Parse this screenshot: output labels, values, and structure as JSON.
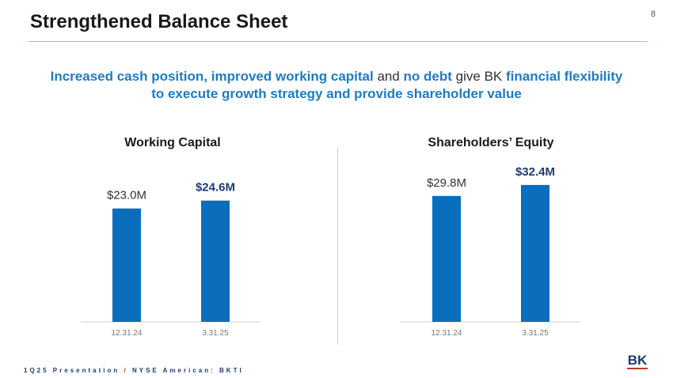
{
  "header": {
    "title": "Strengthened Balance Sheet",
    "page_number": "8"
  },
  "subtitle": {
    "part1": "Increased cash position, improved working capital",
    "part2": " and ",
    "part3": "no debt",
    "part4": " give BK ",
    "part5": "financial flexibility",
    "line2": "to execute growth strategy and provide shareholder value"
  },
  "footer": {
    "left": "1Q25 Presentation",
    "slash": "/",
    "right": "NYSE American: BKTI"
  },
  "logo": {
    "text": "BK"
  },
  "colors": {
    "bar": "#0a6ebd",
    "highlight_label": "#1f3a6e",
    "accent_text": "#1f7bc1"
  },
  "chart_data": [
    {
      "type": "bar",
      "title": "Working Capital",
      "categories": [
        "12.31.24",
        "3.31.25"
      ],
      "values": [
        23.0,
        24.6
      ],
      "labels": [
        "$23.0M",
        "$24.6M"
      ],
      "highlight": [
        false,
        true
      ],
      "unit": "$M",
      "ylim": [
        0,
        30
      ]
    },
    {
      "type": "bar",
      "title": "Shareholders’ Equity",
      "categories": [
        "12.31.24",
        "3.31.25"
      ],
      "values": [
        29.8,
        32.4
      ],
      "labels": [
        "$29.8M",
        "$32.4M"
      ],
      "highlight": [
        false,
        true
      ],
      "unit": "$M",
      "ylim": [
        0,
        35
      ]
    }
  ]
}
